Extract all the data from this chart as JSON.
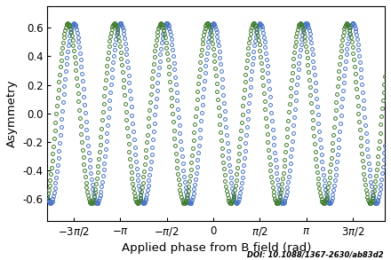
{
  "title": "",
  "xlabel": "Applied phase from B field (rad)",
  "ylabel": "Asymmetry",
  "xlim": [
    -5.6,
    5.8
  ],
  "ylim": [
    -0.75,
    0.75
  ],
  "amplitude": 0.63,
  "frequency": 4.0,
  "blue_phase": 0.0,
  "green_phase": 0.785398163,
  "blue_color": "#4472c4",
  "green_color": "#3d7a2b",
  "n_points": 500,
  "marker_size": 2.8,
  "xticks": [
    -4.71238898038469,
    -3.14159265358979,
    -1.5707963267948966,
    0,
    1.5707963267948966,
    3.14159265358979,
    4.71238898038469
  ],
  "xtick_labels": [
    "$-3\\pi/2$",
    "$-\\pi$",
    "$-\\pi/2$",
    "$0$",
    "$\\pi/2$",
    "$\\pi$",
    "$3\\pi/2$"
  ],
  "yticks": [
    -0.6,
    -0.4,
    -0.2,
    0.0,
    0.2,
    0.4,
    0.6
  ],
  "doi_text": "DOI: 10.1088/1367-2630/ab83d2",
  "background_color": "#ffffff",
  "axes_bg_color": "#ffffff"
}
